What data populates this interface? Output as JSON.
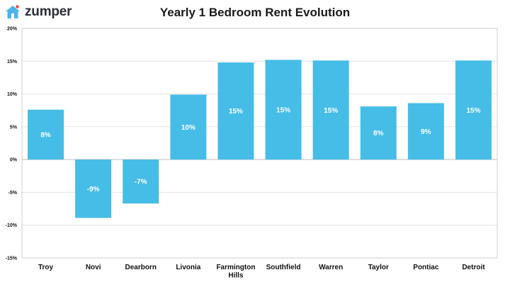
{
  "logo": {
    "text": "zumper",
    "icon": "house-logo-icon"
  },
  "colors": {
    "bar": "#46bde6",
    "grid": "#e3e3e3",
    "axis": "#cfcfcf",
    "logo": "#4db4e8",
    "logo_dot": "#e8463c"
  },
  "chart_data": {
    "type": "bar",
    "title": "Yearly 1 Bedroom Rent Evolution",
    "xlabel": "",
    "ylabel": "",
    "categories": [
      "Troy",
      "Novi",
      "Dearborn",
      "Livonia",
      "Farmington Hills",
      "Southfield",
      "Warren",
      "Taylor",
      "Pontiac",
      "Detroit"
    ],
    "category_lines": [
      [
        "Troy"
      ],
      [
        "Novi"
      ],
      [
        "Dearborn"
      ],
      [
        "Livonia"
      ],
      [
        "Farmington",
        "Hills"
      ],
      [
        "Southfield"
      ],
      [
        "Warren"
      ],
      [
        "Taylor"
      ],
      [
        "Pontiac"
      ],
      [
        "Detroit"
      ]
    ],
    "values": [
      7.6,
      -8.9,
      -6.7,
      9.9,
      14.8,
      15.2,
      15.1,
      8.1,
      8.6,
      15.1
    ],
    "data_labels": [
      "8%",
      "-9%",
      "-7%",
      "10%",
      "15%",
      "15%",
      "15%",
      "8%",
      "9%",
      "15%"
    ],
    "ylim": [
      -15,
      20
    ],
    "yticks": [
      20,
      15,
      10,
      5,
      0,
      -5,
      -10,
      -15
    ],
    "ytick_labels": [
      "20%",
      "15%",
      "10%",
      "5%",
      "0%",
      "-5%",
      "-10%",
      "-15%"
    ],
    "grid": true,
    "legend": "none"
  }
}
